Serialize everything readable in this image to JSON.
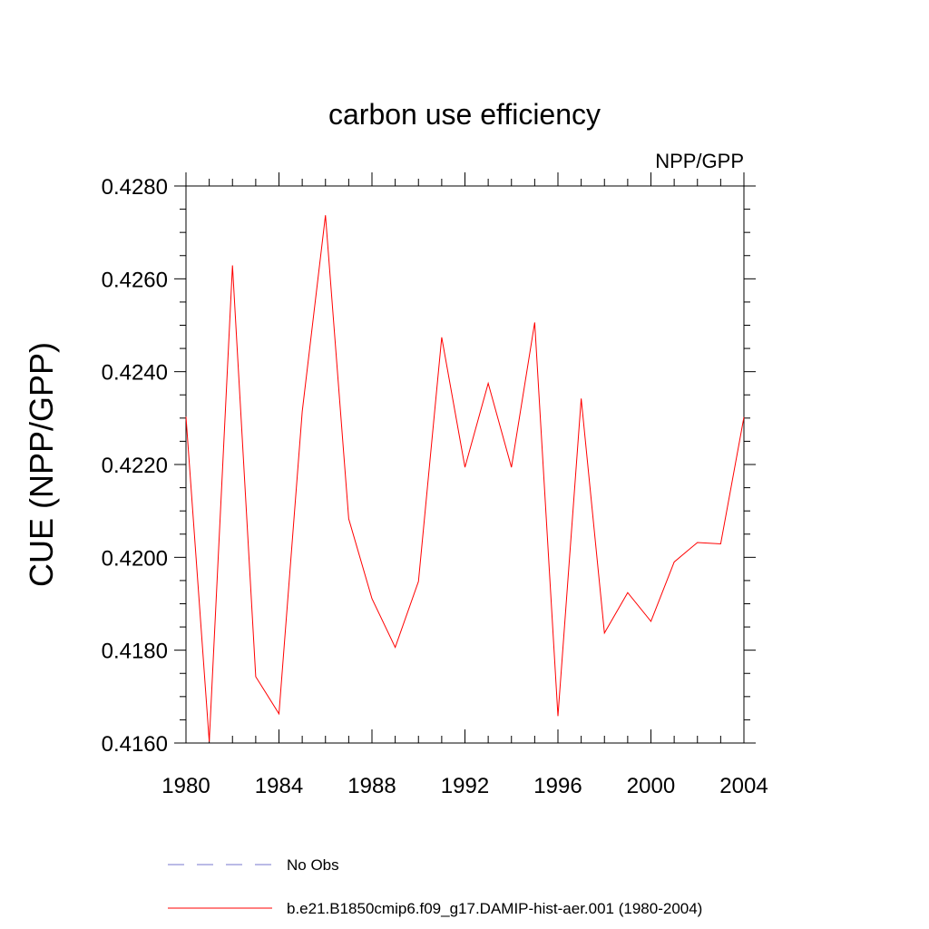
{
  "chart_data": {
    "type": "line",
    "title": "carbon use efficiency",
    "subtitle": "NPP/GPP",
    "xlabel": "",
    "ylabel": "CUE  (NPP/GPP)",
    "xlim": [
      1980,
      2004
    ],
    "ylim": [
      0.416,
      0.428
    ],
    "x_ticks": [
      1980,
      1984,
      1988,
      1992,
      1996,
      2000,
      2004
    ],
    "x_tick_labels": [
      "1980",
      "1984",
      "1988",
      "1992",
      "1996",
      "2000",
      "2004"
    ],
    "y_ticks": [
      0.416,
      0.418,
      0.42,
      0.422,
      0.424,
      0.426,
      0.428
    ],
    "y_tick_labels": [
      "0.4160",
      "0.4180",
      "0.4200",
      "0.4220",
      "0.4240",
      "0.4260",
      "0.4280"
    ],
    "grid": false,
    "legend_position": "bottom",
    "legend": [
      {
        "label": "No Obs",
        "color": "#7777cc",
        "style": "dashed"
      },
      {
        "label": "b.e21.B1850cmip6.f09_g17.DAMIP-hist-aer.001 (1980-2004)",
        "color": "#ff0000",
        "style": "solid"
      }
    ],
    "series": [
      {
        "name": "b.e21.B1850cmip6.f09_g17.DAMIP-hist-aer.001 (1980-2004)",
        "color": "#ff0000",
        "x": [
          1980,
          1981,
          1982,
          1983,
          1984,
          1985,
          1986,
          1987,
          1988,
          1989,
          1990,
          1991,
          1992,
          1993,
          1994,
          1995,
          1996,
          1997,
          1998,
          1999,
          2000,
          2001,
          2002,
          2003,
          2004
        ],
        "y": [
          0.42303,
          0.41603,
          0.42629,
          0.41743,
          0.41663,
          0.42314,
          0.42737,
          0.42083,
          0.41911,
          0.41806,
          0.41948,
          0.42474,
          0.42194,
          0.42375,
          0.42194,
          0.42506,
          0.41658,
          0.42342,
          0.41837,
          0.41924,
          0.41862,
          0.4199,
          0.42032,
          0.42029,
          0.42302
        ]
      }
    ]
  }
}
